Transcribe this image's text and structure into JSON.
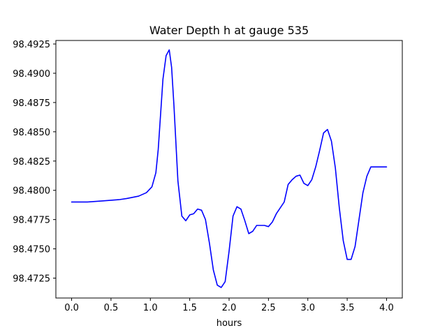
{
  "chart_data": {
    "type": "line",
    "title": "Water Depth h at gauge 535",
    "xlabel": "hours",
    "ylabel": "",
    "xlim": [
      -0.2,
      4.2
    ],
    "ylim": [
      98.4708,
      98.4928
    ],
    "grid": false,
    "x_ticks": [
      0.0,
      0.5,
      1.0,
      1.5,
      2.0,
      2.5,
      3.0,
      3.5,
      4.0
    ],
    "x_tick_labels": [
      "0.0",
      "0.5",
      "1.0",
      "1.5",
      "2.0",
      "2.5",
      "3.0",
      "3.5",
      "4.0"
    ],
    "y_ticks": [
      98.4725,
      98.475,
      98.4775,
      98.48,
      98.4825,
      98.485,
      98.4875,
      98.49,
      98.4925
    ],
    "y_tick_labels": [
      "98.4725",
      "98.4750",
      "98.4775",
      "98.4800",
      "98.4825",
      "98.4850",
      "98.4875",
      "98.4900",
      "98.4925"
    ],
    "series": [
      {
        "color": "#0000ff",
        "x": [
          0.0,
          0.2,
          0.4,
          0.6,
          0.7,
          0.85,
          0.95,
          1.02,
          1.07,
          1.1,
          1.13,
          1.16,
          1.2,
          1.24,
          1.27,
          1.3,
          1.35,
          1.4,
          1.45,
          1.5,
          1.55,
          1.6,
          1.65,
          1.7,
          1.75,
          1.8,
          1.85,
          1.9,
          1.95,
          2.0,
          2.05,
          2.1,
          2.15,
          2.2,
          2.25,
          2.3,
          2.35,
          2.4,
          2.45,
          2.5,
          2.55,
          2.6,
          2.65,
          2.7,
          2.75,
          2.8,
          2.85,
          2.9,
          2.95,
          3.0,
          3.05,
          3.1,
          3.15,
          3.2,
          3.25,
          3.3,
          3.35,
          3.4,
          3.45,
          3.5,
          3.55,
          3.6,
          3.65,
          3.7,
          3.75,
          3.8,
          3.85,
          3.9,
          3.95,
          4.0
        ],
        "y": [
          98.479,
          98.479,
          98.4791,
          98.4792,
          98.4793,
          98.4795,
          98.4798,
          98.4803,
          98.4815,
          98.4835,
          98.4865,
          98.4895,
          98.4915,
          98.492,
          98.4905,
          98.4872,
          98.4808,
          98.4778,
          98.4774,
          98.4779,
          98.478,
          98.4784,
          98.4783,
          98.4775,
          98.4755,
          98.4732,
          98.4719,
          98.4717,
          98.4722,
          98.4748,
          98.4778,
          98.4786,
          98.4784,
          98.4774,
          98.4763,
          98.4765,
          98.477,
          98.477,
          98.477,
          98.4769,
          98.4773,
          98.478,
          98.4785,
          98.479,
          98.4805,
          98.4809,
          98.4812,
          98.4813,
          98.4806,
          98.4804,
          98.4809,
          98.482,
          98.4834,
          98.4849,
          98.4852,
          98.4842,
          98.4819,
          98.4785,
          98.4757,
          98.4741,
          98.4741,
          98.4752,
          98.4775,
          98.4798,
          98.4812,
          98.482,
          98.482,
          98.482,
          98.482,
          98.482
        ]
      }
    ]
  }
}
